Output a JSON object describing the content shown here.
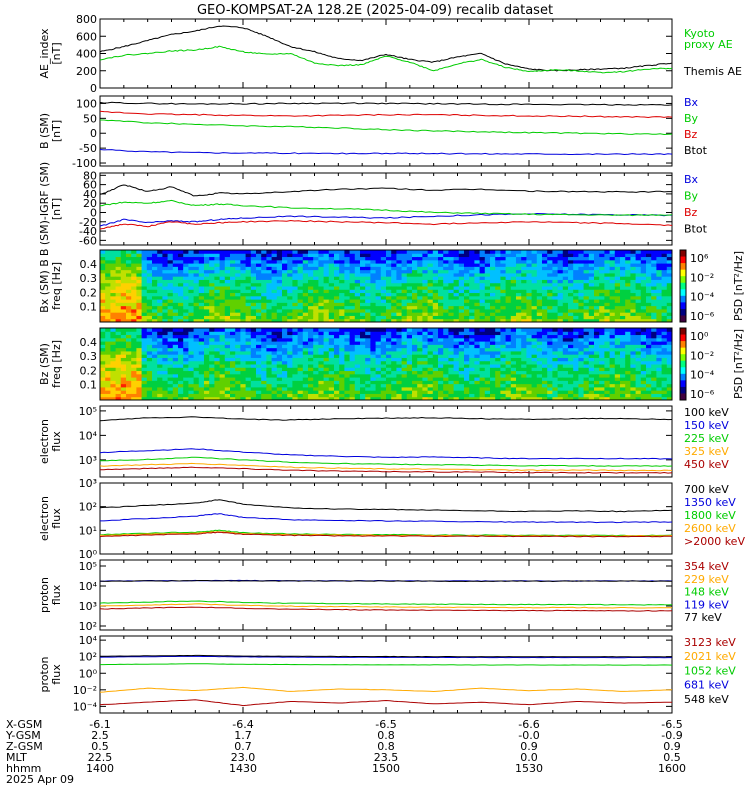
{
  "title": "GEO-KOMPSAT-2A 128.2E (2025-04-09) recalib dataset",
  "colors": {
    "black": "#000000",
    "green": "#00cc00",
    "red": "#dd0000",
    "blue": "#0000dd",
    "orange": "#ffaa00",
    "darkred": "#aa0000",
    "lime": "#00dd00"
  },
  "chart_data": [
    {
      "id": "ae",
      "type": "line",
      "ylabel": "AE_index\n[nT]",
      "yticks": [
        "0",
        "200",
        "400",
        "600",
        "800"
      ],
      "ylim": [
        0,
        800
      ],
      "x": [
        1400,
        1405,
        1410,
        1415,
        1420,
        1425,
        1430,
        1435,
        1440,
        1445,
        1450,
        1455,
        1500,
        1505,
        1510,
        1515,
        1520,
        1525,
        1530,
        1535,
        1540,
        1545,
        1550,
        1555,
        1600
      ],
      "series": [
        {
          "name": "Themis AE",
          "color": "#000000",
          "values": [
            420,
            480,
            550,
            620,
            660,
            720,
            700,
            600,
            480,
            420,
            340,
            320,
            390,
            330,
            300,
            360,
            400,
            280,
            220,
            200,
            210,
            220,
            230,
            260,
            290
          ]
        },
        {
          "name": "Kyoto\nproxy AE",
          "color": "#00cc00",
          "values": [
            330,
            380,
            400,
            430,
            440,
            480,
            420,
            390,
            400,
            290,
            260,
            270,
            370,
            300,
            200,
            280,
            330,
            240,
            190,
            210,
            200,
            180,
            190,
            220,
            230
          ]
        }
      ]
    },
    {
      "id": "b_sm",
      "type": "line",
      "ylabel": "B (SM)\n[nT]",
      "yticks": [
        "-100",
        "-50",
        "0",
        "50",
        "100"
      ],
      "ylim": [
        -110,
        125
      ],
      "x": [
        1400,
        1410,
        1420,
        1430,
        1440,
        1450,
        1500,
        1510,
        1520,
        1530,
        1540,
        1550,
        1600
      ],
      "series": [
        {
          "name": "Bx",
          "color": "#0000dd",
          "values": [
            -55,
            -62,
            -65,
            -66,
            -67,
            -68,
            -68,
            -68,
            -69,
            -69,
            -70,
            -70,
            -70
          ]
        },
        {
          "name": "By",
          "color": "#00cc00",
          "values": [
            45,
            35,
            30,
            25,
            22,
            18,
            12,
            8,
            5,
            2,
            0,
            -2,
            -3
          ]
        },
        {
          "name": "Bz",
          "color": "#dd0000",
          "values": [
            72,
            65,
            62,
            60,
            58,
            60,
            62,
            62,
            60,
            58,
            57,
            55,
            54
          ]
        },
        {
          "name": "Btot",
          "color": "#000000",
          "values": [
            103,
            100,
            98,
            99,
            100,
            101,
            100,
            99,
            98,
            97,
            96,
            96,
            95
          ]
        }
      ]
    },
    {
      "id": "b_igrf",
      "type": "line",
      "ylabel": "B (SM)-IGRF (SM)\n[nT]",
      "yticks": [
        "-60",
        "-40",
        "-20",
        "0",
        "20",
        "40",
        "60",
        "80"
      ],
      "ylim": [
        -70,
        85
      ],
      "x": [
        1400,
        1405,
        1410,
        1415,
        1420,
        1425,
        1430,
        1440,
        1450,
        1500,
        1510,
        1520,
        1530,
        1540,
        1550,
        1600
      ],
      "series": [
        {
          "name": "Bx",
          "color": "#0000dd",
          "values": [
            -30,
            -15,
            -22,
            -18,
            -20,
            -15,
            -12,
            -8,
            -10,
            -12,
            -8,
            -5,
            -3,
            -4,
            -5,
            -6
          ]
        },
        {
          "name": "By",
          "color": "#00cc00",
          "values": [
            15,
            22,
            20,
            25,
            15,
            18,
            15,
            10,
            8,
            5,
            0,
            -2,
            -4,
            -5,
            -6,
            -5
          ]
        },
        {
          "name": "Bz",
          "color": "#dd0000",
          "values": [
            -35,
            -25,
            -30,
            -20,
            -25,
            -22,
            -20,
            -18,
            -20,
            -22,
            -25,
            -22,
            -20,
            -22,
            -24,
            -28
          ]
        },
        {
          "name": "Btot",
          "color": "#000000",
          "values": [
            38,
            60,
            45,
            55,
            35,
            42,
            40,
            45,
            50,
            52,
            48,
            50,
            46,
            45,
            44,
            45
          ]
        }
      ]
    },
    {
      "id": "bx_psd",
      "type": "heatmap",
      "ylabel": "Bx (SM) B\nfreq [Hz]",
      "yticks": [
        "0.1",
        "0.2",
        "0.3",
        "0.4"
      ],
      "ylim": [
        0,
        0.5
      ],
      "colorbar_label": "PSD [nT²/Hz]",
      "colorbar_ticks": [
        "10⁶",
        "10⁻²",
        "10⁻⁴",
        "10⁻⁶"
      ]
    },
    {
      "id": "bz_psd",
      "type": "heatmap",
      "ylabel": "Bz (SM)\nfreq [Hz]",
      "yticks": [
        "0.1",
        "0.2",
        "0.3",
        "0.4"
      ],
      "ylim": [
        0,
        0.5
      ],
      "colorbar_label": "PSD [nT²/Hz]",
      "colorbar_ticks": [
        "10⁰",
        "10⁻²",
        "10⁻⁴",
        "10⁻⁶"
      ]
    },
    {
      "id": "e_flux_low",
      "type": "line",
      "log": true,
      "ylabel": "electron\nflux",
      "yticks": [
        "10³",
        "10⁴",
        "10⁵"
      ],
      "ylim_exp": [
        2.3,
        5.2
      ],
      "x": [
        1400,
        1410,
        1420,
        1430,
        1440,
        1450,
        1500,
        1510,
        1520,
        1530,
        1540,
        1550,
        1600
      ],
      "series": [
        {
          "name": "100 keV",
          "color": "#000000",
          "values_log": [
            4.6,
            4.72,
            4.75,
            4.66,
            4.63,
            4.68,
            4.7,
            4.72,
            4.68,
            4.66,
            4.68,
            4.69,
            4.65
          ]
        },
        {
          "name": "150 keV",
          "color": "#0000dd",
          "values_log": [
            3.3,
            3.38,
            3.45,
            3.32,
            3.2,
            3.15,
            3.1,
            3.12,
            3.08,
            3.05,
            3.06,
            3.05,
            3.04
          ]
        },
        {
          "name": "225 keV",
          "color": "#00cc00",
          "values_log": [
            2.95,
            3.02,
            3.1,
            3.0,
            2.9,
            2.85,
            2.82,
            2.8,
            2.78,
            2.76,
            2.76,
            2.75,
            2.75
          ]
        },
        {
          "name": "325 keV",
          "color": "#ffaa00",
          "values_log": [
            2.75,
            2.8,
            2.85,
            2.78,
            2.7,
            2.66,
            2.63,
            2.62,
            2.6,
            2.58,
            2.58,
            2.57,
            2.57
          ]
        },
        {
          "name": "450 keV",
          "color": "#aa0000",
          "values_log": [
            2.6,
            2.65,
            2.7,
            2.64,
            2.58,
            2.54,
            2.52,
            2.51,
            2.5,
            2.48,
            2.48,
            2.47,
            2.47
          ]
        }
      ]
    },
    {
      "id": "e_flux_high",
      "type": "line",
      "log": true,
      "ylabel": "electron\nflux",
      "yticks": [
        "10⁰",
        "10¹",
        "10²",
        "10³"
      ],
      "ylim_exp": [
        0,
        3
      ],
      "x": [
        1400,
        1410,
        1420,
        1425,
        1430,
        1440,
        1450,
        1500,
        1510,
        1520,
        1530,
        1540,
        1550,
        1600
      ],
      "series": [
        {
          "name": "700 keV",
          "color": "#000000",
          "values_log": [
            1.95,
            2.05,
            2.15,
            2.3,
            2.1,
            1.95,
            1.9,
            1.88,
            1.85,
            1.82,
            1.8,
            1.82,
            1.8,
            1.85
          ]
        },
        {
          "name": "1350 keV",
          "color": "#0000dd",
          "values_log": [
            1.4,
            1.5,
            1.6,
            1.7,
            1.55,
            1.45,
            1.42,
            1.4,
            1.38,
            1.36,
            1.35,
            1.34,
            1.34,
            1.35
          ]
        },
        {
          "name": "1800 keV",
          "color": "#00cc00",
          "values_log": [
            0.82,
            0.88,
            0.92,
            1.0,
            0.9,
            0.85,
            0.83,
            0.82,
            0.8,
            0.8,
            0.79,
            0.79,
            0.78,
            0.8
          ]
        },
        {
          "name": "2600 keV",
          "color": "#ffaa00",
          "values_log": [
            0.78,
            0.84,
            0.88,
            0.95,
            0.86,
            0.82,
            0.8,
            0.79,
            0.78,
            0.77,
            0.77,
            0.76,
            0.76,
            0.78
          ]
        },
        {
          "name": ">2000 keV",
          "color": "#aa0000",
          "values_log": [
            0.74,
            0.8,
            0.85,
            0.92,
            0.83,
            0.79,
            0.77,
            0.76,
            0.75,
            0.75,
            0.74,
            0.74,
            0.73,
            0.75
          ]
        }
      ]
    },
    {
      "id": "p_flux_low",
      "type": "line",
      "log": true,
      "ylabel": "proton\nflux",
      "yticks": [
        "10²",
        "10³",
        "10⁴",
        "10⁵"
      ],
      "ylim_exp": [
        1.8,
        5.3
      ],
      "x": [
        1400,
        1410,
        1420,
        1430,
        1440,
        1450,
        1500,
        1510,
        1520,
        1530,
        1540,
        1550,
        1600
      ],
      "series": [
        {
          "name": "354 keV",
          "color": "#aa0000",
          "values_log": [
            2.85,
            2.9,
            2.95,
            2.88,
            2.84,
            2.82,
            2.8,
            2.79,
            2.78,
            2.77,
            2.77,
            2.76,
            2.76
          ]
        },
        {
          "name": "229 keV",
          "color": "#ffaa00",
          "values_log": [
            3.0,
            3.05,
            3.1,
            3.03,
            2.99,
            2.97,
            2.95,
            2.94,
            2.93,
            2.92,
            2.92,
            2.91,
            2.91
          ]
        },
        {
          "name": "148 keV",
          "color": "#00cc00",
          "values_log": [
            3.15,
            3.2,
            3.25,
            3.18,
            3.14,
            3.12,
            3.1,
            3.09,
            3.08,
            3.07,
            3.07,
            3.06,
            3.06
          ]
        },
        {
          "name": "119 keV",
          "color": "#0000dd",
          "values_log": [
            4.25,
            4.26,
            4.27,
            4.27,
            4.26,
            4.26,
            4.26,
            4.25,
            4.25,
            4.25,
            4.25,
            4.25,
            4.25
          ]
        },
        {
          "name": "77 keV",
          "color": "#000000",
          "values_log": [
            4.24,
            4.25,
            4.26,
            4.26,
            4.25,
            4.25,
            4.25,
            4.24,
            4.24,
            4.24,
            4.24,
            4.24,
            4.24
          ]
        }
      ]
    },
    {
      "id": "p_flux_high",
      "type": "line",
      "log": true,
      "ylabel": "proton\nflux",
      "yticks": [
        "10⁻⁴",
        "10⁻²",
        "10⁰",
        "10²",
        "10⁴"
      ],
      "ylim_exp": [
        -4.8,
        4.5
      ],
      "x": [
        1400,
        1410,
        1420,
        1430,
        1440,
        1450,
        1500,
        1510,
        1520,
        1530,
        1540,
        1550,
        1600
      ],
      "series": [
        {
          "name": "3123 keV",
          "color": "#aa0000",
          "values_log": [
            -3.8,
            -3.5,
            -3.2,
            -3.9,
            -3.4,
            -3.6,
            -3.3,
            -3.7,
            -3.5,
            -3.8,
            -3.4,
            -3.6,
            -3.5
          ]
        },
        {
          "name": "2021 keV",
          "color": "#ffaa00",
          "values_log": [
            -2.3,
            -1.8,
            -2.1,
            -1.7,
            -2.2,
            -1.9,
            -2.0,
            -2.2,
            -1.8,
            -2.1,
            -1.9,
            -2.2,
            -2.0
          ]
        },
        {
          "name": "1052 keV",
          "color": "#00cc00",
          "values_log": [
            1.05,
            1.1,
            1.15,
            1.08,
            1.05,
            1.03,
            1.02,
            1.01,
            1.0,
            1.0,
            1.0,
            0.99,
            0.99
          ]
        },
        {
          "name": "681 keV",
          "color": "#0000dd",
          "values_log": [
            1.95,
            2.0,
            2.05,
            1.98,
            1.95,
            1.93,
            1.92,
            1.91,
            1.9,
            1.9,
            1.9,
            1.89,
            1.89
          ]
        },
        {
          "name": "548 keV",
          "color": "#000000",
          "values_log": [
            2.05,
            2.1,
            2.15,
            2.08,
            2.05,
            2.03,
            2.02,
            2.01,
            2.0,
            2.0,
            2.0,
            1.99,
            1.99
          ]
        }
      ]
    }
  ],
  "ephemeris": {
    "labels": [
      "X-GSM",
      "Y-GSM",
      "Z-GSM",
      "MLT",
      "hhmm",
      "2025 Apr 09"
    ],
    "columns": [
      [
        "-6.1",
        "2.5",
        "0.5",
        "22.5",
        "1400"
      ],
      [
        "-6.4",
        "1.7",
        "0.7",
        "23.0",
        "1430"
      ],
      [
        "-6.5",
        "0.8",
        "0.8",
        "23.5",
        "1500"
      ],
      [
        "-6.6",
        "-0.0",
        "0.9",
        "0.0",
        "1530"
      ],
      [
        "-6.5",
        "-0.9",
        "0.9",
        "0.5",
        "1600"
      ]
    ]
  }
}
